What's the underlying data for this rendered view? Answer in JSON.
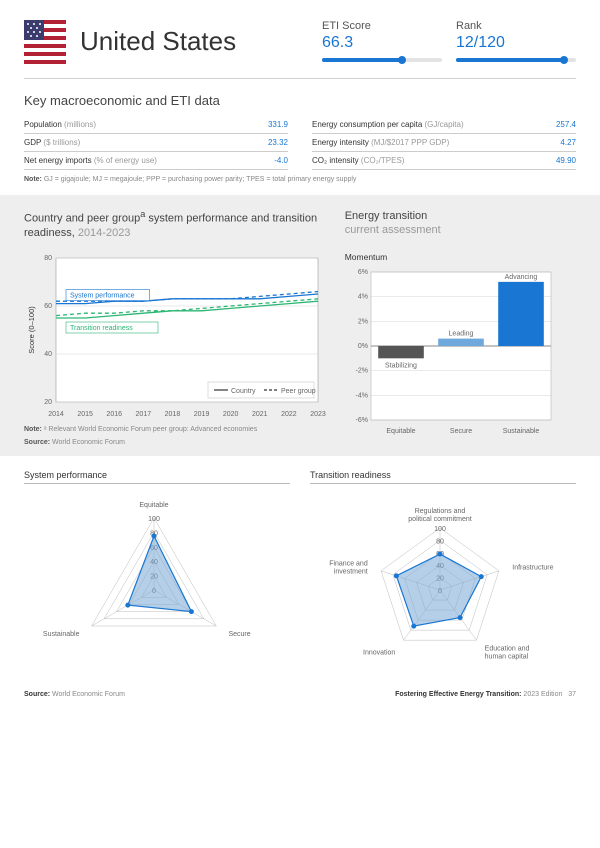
{
  "header": {
    "country": "United States",
    "eti_label": "ETI Score",
    "eti_value": "66.3",
    "eti_pct": 0.663,
    "rank_label": "Rank",
    "rank_value": "12/120",
    "rank_pct": 0.9
  },
  "macro": {
    "title": "Key macroeconomic and ETI data",
    "left": [
      {
        "k": "Population",
        "unit": "(millions)",
        "v": "331.9"
      },
      {
        "k": "GDP",
        "unit": "($ trillions)",
        "v": "23.32"
      },
      {
        "k": "Net energy imports",
        "unit": "(% of energy use)",
        "v": "-4.0"
      }
    ],
    "right": [
      {
        "k": "Energy consumption per capita",
        "unit": "(GJ/capita)",
        "v": "257.4"
      },
      {
        "k": "Energy intensity",
        "unit": "(MJ/$2017 PPP GDP)",
        "v": "4.27"
      },
      {
        "k": "CO₂ intensity",
        "unit": "(CO₂/TPES)",
        "v": "49.90"
      }
    ],
    "note_b": "Note:",
    "note": " GJ = gigajoule; MJ = megajoule; PPP = purchasing power parity; TPES = total primary energy supply"
  },
  "linechart": {
    "title_a": "Country and peer group",
    "title_sup": "a",
    "title_b": " system performance and transition readiness,",
    "title_span": " 2014-2023",
    "ylabel": "Score (0–100)",
    "ylim": [
      20,
      80
    ],
    "yticks": [
      20,
      40,
      60,
      80
    ],
    "xticks": [
      "2014",
      "2015",
      "2016",
      "2017",
      "2018",
      "2019",
      "2020",
      "2021",
      "2022",
      "2023"
    ],
    "series": {
      "sys_country": {
        "label": "System performance",
        "color": "#1976d2",
        "dash": "none",
        "values": [
          61,
          61,
          62,
          62,
          63,
          63,
          63,
          63,
          64,
          65
        ]
      },
      "sys_peer": {
        "color": "#1976d2",
        "dash": "4,3",
        "values": [
          62,
          62,
          62,
          62,
          63,
          63,
          63,
          64,
          65,
          66
        ]
      },
      "trans_country": {
        "label": "Transition readiness",
        "color": "#2bb673",
        "dash": "none",
        "values": [
          55,
          55,
          56,
          57,
          58,
          58,
          59,
          60,
          61,
          62
        ]
      },
      "trans_peer": {
        "color": "#2bb673",
        "dash": "4,3",
        "values": [
          56,
          57,
          57,
          58,
          58,
          59,
          60,
          61,
          62,
          63
        ]
      }
    },
    "legend": {
      "country": "Country",
      "peer": "Peer group"
    },
    "note_b": "Note:",
    "note": " ᵃ Relevant World Economic Forum peer group: Advanced economies",
    "src_b": "Source:",
    "src": " World Economic Forum",
    "bg": "#ffffff",
    "grid": "#d5d5d5"
  },
  "momentum": {
    "title_a": "Energy transition",
    "title_b": "current assessment",
    "subhead": "Momentum",
    "ylim": [
      -6,
      6
    ],
    "yticks": [
      "-6%",
      "-4%",
      "-2%",
      "0%",
      "2%",
      "4%",
      "6%"
    ],
    "cats": [
      "Equitable",
      "Secure",
      "Sustainable"
    ],
    "bars": [
      {
        "v": -1.0,
        "color": "#555555",
        "label": "Stabilizing"
      },
      {
        "v": 0.6,
        "color": "#6fa8dc",
        "label": "Leading"
      },
      {
        "v": 5.2,
        "color": "#1976d2",
        "label": "Advancing"
      }
    ],
    "bg": "#ffffff",
    "grid": "#d5d5d5"
  },
  "radars": {
    "sys": {
      "title": "System performance",
      "axes": [
        "Equitable",
        "Secure",
        "Sustainable"
      ],
      "rings": [
        0,
        20,
        40,
        60,
        80,
        100
      ],
      "values": [
        75,
        60,
        42
      ],
      "fill": "#7aa8d6",
      "stroke": "#1976d2"
    },
    "trans": {
      "title": "Transition readiness",
      "axes": [
        "Regulations and\npolitical commitment",
        "Infrastructure",
        "Education and\nhuman capital",
        "Innovation",
        "Finance and\ninvestment"
      ],
      "rings": [
        0,
        20,
        40,
        60,
        80,
        100
      ],
      "values": [
        58,
        70,
        55,
        72,
        74
      ],
      "fill": "#7aa8d6",
      "stroke": "#1976d2"
    }
  },
  "footer": {
    "src_b": "Source:",
    "src": " World Economic Forum",
    "pub": "Fostering Effective Energy Transition:",
    "ed": " 2023 Edition",
    "page": "37"
  }
}
